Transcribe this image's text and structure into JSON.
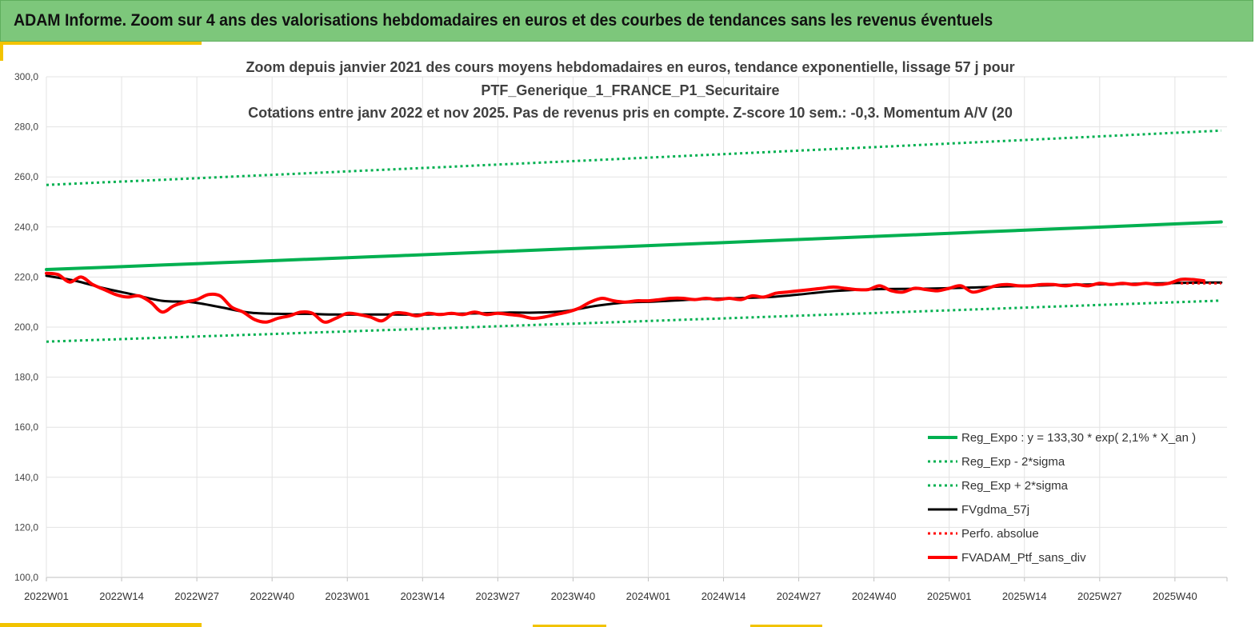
{
  "header": {
    "title": "ADAM Informe. Zoom sur 4 ans des valorisations hebdomadaires en euros et des courbes de tendances sans les revenus éventuels"
  },
  "colors": {
    "header_bg": "#7dc77b",
    "accent": "#f2c300",
    "reg_expo": "#00b050",
    "fvgdma": "#000000",
    "fvadam": "#ff0000"
  },
  "chart_data": {
    "type": "line",
    "title_lines": [
      "Zoom depuis janvier 2021 des cours moyens hebdomadaires  en euros, tendance exponentielle, lissage 57 j pour",
      "PTF_Generique_1_FRANCE_P1_Securitaire",
      "Cotations  entre janv 2022 et nov 2025. Pas de revenus pris en compte. Z-score 10 sem.: -0,3. Momentum A/V (20"
    ],
    "ylim": [
      100,
      300
    ],
    "y_ticks": [
      "300,0",
      "280,0",
      "260,0",
      "240,0",
      "220,0",
      "200,0",
      "180,0",
      "160,0",
      "140,0",
      "120,0",
      "100,0"
    ],
    "x_ticks": [
      "2022W01",
      "2022W14",
      "2022W27",
      "2022W40",
      "2023W01",
      "2023W14",
      "2023W27",
      "2023W40",
      "2024W01",
      "2024W14",
      "2024W27",
      "2024W40",
      "2025W01",
      "2025W14",
      "2025W27",
      "2025W40"
    ],
    "n_weeks": 204,
    "grid": true,
    "legend_position": "bottom-right",
    "series": [
      {
        "name": "Reg_Expo : y = 133,30 * exp( 2,1% *  X_an )",
        "style": "solid-green",
        "x": [
          0,
          203
        ],
        "values": [
          223.0,
          242.0
        ]
      },
      {
        "name": "Reg_Exp - 2*sigma",
        "style": "dotted-green",
        "x": [
          0,
          203
        ],
        "values": [
          194.2,
          210.6
        ]
      },
      {
        "name": "Reg_Exp + 2*sigma",
        "style": "dotted-green",
        "x": [
          0,
          203
        ],
        "values": [
          256.8,
          278.5
        ]
      },
      {
        "name": "FVgdma_57j",
        "style": "solid-black",
        "x": [
          0,
          5,
          10,
          15,
          20,
          25,
          30,
          35,
          40,
          45,
          50,
          55,
          60,
          65,
          70,
          75,
          80,
          85,
          90,
          95,
          100,
          105,
          110,
          115,
          120,
          125,
          130,
          135,
          140,
          145,
          150,
          155,
          160,
          165,
          170,
          175,
          180,
          185,
          190,
          195,
          200,
          203
        ],
        "values": [
          220.5,
          218.5,
          215.5,
          213.0,
          210.5,
          210.0,
          208.0,
          205.8,
          205.3,
          205.3,
          205.0,
          205.0,
          205.0,
          205.0,
          205.3,
          205.5,
          205.8,
          205.8,
          206.5,
          208.5,
          209.8,
          210.2,
          210.8,
          211.3,
          211.6,
          212.0,
          213.0,
          214.2,
          214.9,
          215.2,
          215.3,
          215.5,
          215.8,
          216.2,
          216.5,
          216.8,
          217.0,
          217.2,
          217.4,
          217.6,
          217.8,
          217.8
        ]
      },
      {
        "name": "Perfo. absolue",
        "style": "dotted-red",
        "x": [
          196,
          203
        ],
        "values": [
          217.5,
          217.5
        ]
      },
      {
        "name": "FVADAM_Ptf_sans_div",
        "style": "solid-red",
        "x": [
          0,
          2,
          4,
          6,
          8,
          10,
          12,
          14,
          16,
          18,
          20,
          22,
          24,
          26,
          28,
          30,
          32,
          34,
          36,
          38,
          40,
          42,
          44,
          46,
          48,
          50,
          52,
          54,
          56,
          58,
          60,
          62,
          64,
          66,
          68,
          70,
          72,
          74,
          76,
          78,
          80,
          82,
          84,
          86,
          88,
          90,
          92,
          94,
          96,
          98,
          100,
          102,
          104,
          106,
          108,
          110,
          112,
          114,
          116,
          118,
          120,
          122,
          124,
          126,
          128,
          130,
          132,
          134,
          136,
          138,
          140,
          142,
          144,
          146,
          148,
          150,
          152,
          154,
          156,
          158,
          160,
          162,
          164,
          166,
          168,
          170,
          172,
          174,
          176,
          178,
          180,
          182,
          184,
          186,
          188,
          190,
          192,
          194,
          196,
          198,
          200
        ],
        "values": [
          221.5,
          221.0,
          218.0,
          220.0,
          217.0,
          215.0,
          213.0,
          212.0,
          212.5,
          210.0,
          206.0,
          208.5,
          210.0,
          211.0,
          213.0,
          212.5,
          208.0,
          206.0,
          203.0,
          202.0,
          203.5,
          204.5,
          206.0,
          205.5,
          202.0,
          203.5,
          205.5,
          205.0,
          204.0,
          202.5,
          205.5,
          205.5,
          204.5,
          205.5,
          205.0,
          205.5,
          205.0,
          206.0,
          205.0,
          205.5,
          205.0,
          204.5,
          203.5,
          204.0,
          205.0,
          206.0,
          207.5,
          210.0,
          211.5,
          210.5,
          210.0,
          210.5,
          210.5,
          211.0,
          211.5,
          211.5,
          211.0,
          211.5,
          211.0,
          211.5,
          211.0,
          212.5,
          212.0,
          213.5,
          214.0,
          214.5,
          215.0,
          215.5,
          216.0,
          215.5,
          215.0,
          215.0,
          216.5,
          214.5,
          214.0,
          215.5,
          215.0,
          214.5,
          215.5,
          216.5,
          214.0,
          215.0,
          216.5,
          217.0,
          216.5,
          216.5,
          217.0,
          217.0,
          216.5,
          217.0,
          216.5,
          217.5,
          217.0,
          217.5,
          217.0,
          217.5,
          217.0,
          217.5,
          219.0,
          219.0,
          218.5
        ]
      }
    ]
  }
}
